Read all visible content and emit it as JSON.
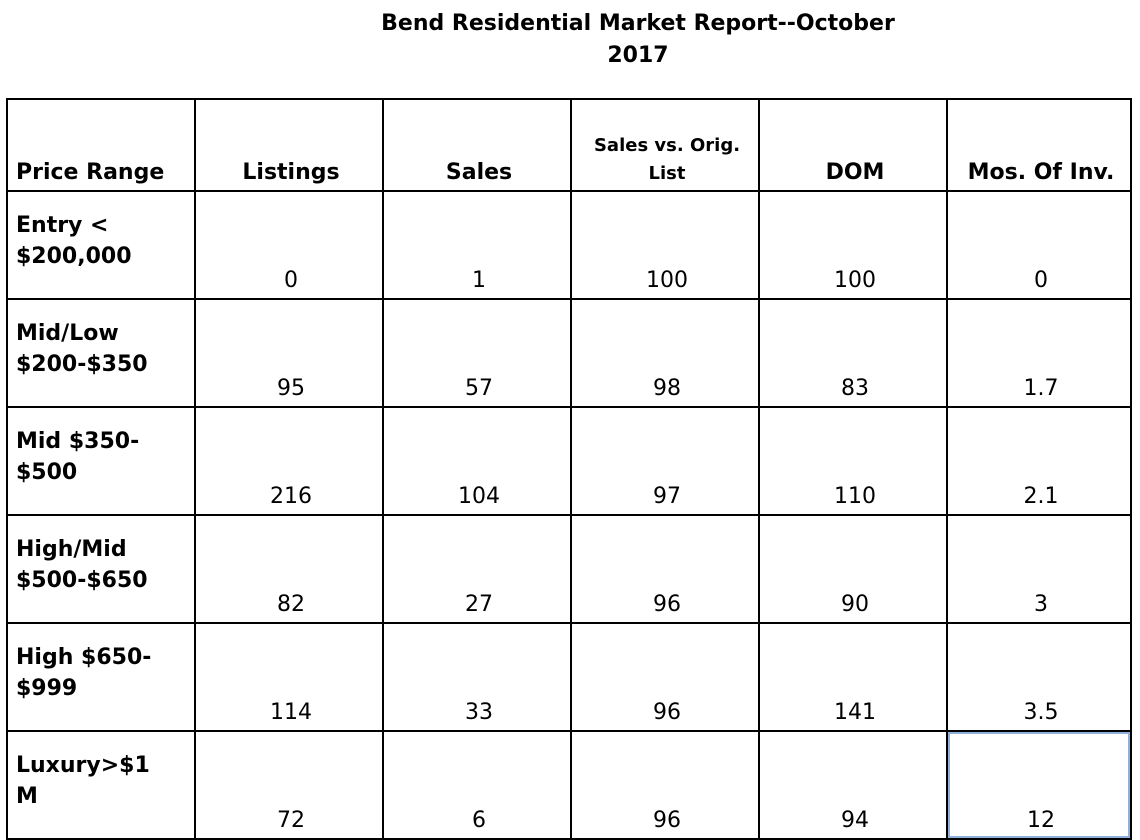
{
  "title": {
    "line1": "Bend Residential Market Report--October",
    "line2": "2017"
  },
  "table": {
    "headers": {
      "price_range": "Price Range",
      "listings": "Listings",
      "sales": "Sales",
      "sales_vs_orig_line1": "Sales vs. Orig.",
      "sales_vs_orig_line2": "List",
      "dom": "DOM",
      "mos_of_inv": "Mos. Of Inv."
    },
    "rows": [
      {
        "range_line1": "Entry <",
        "range_line2": "$200,000",
        "listings": "0",
        "sales": "1",
        "sales_vs_orig": "100",
        "dom": "100",
        "mos_of_inv": "0"
      },
      {
        "range_line1": "Mid/Low",
        "range_line2": "$200-$350",
        "listings": "95",
        "sales": "57",
        "sales_vs_orig": "98",
        "dom": "83",
        "mos_of_inv": "1.7"
      },
      {
        "range_line1": "Mid $350-",
        "range_line2": "$500",
        "listings": "216",
        "sales": "104",
        "sales_vs_orig": "97",
        "dom": "110",
        "mos_of_inv": "2.1"
      },
      {
        "range_line1": "High/Mid",
        "range_line2": "$500-$650",
        "listings": "82",
        "sales": "27",
        "sales_vs_orig": "96",
        "dom": "90",
        "mos_of_inv": "3"
      },
      {
        "range_line1": "High $650-",
        "range_line2": "$999",
        "listings": "114",
        "sales": "33",
        "sales_vs_orig": "96",
        "dom": "141",
        "mos_of_inv": "3.5"
      },
      {
        "range_line1": "Luxury>$1",
        "range_line2": "M",
        "listings": "72",
        "sales": "6",
        "sales_vs_orig": "96",
        "dom": "94",
        "mos_of_inv": "12"
      }
    ]
  }
}
